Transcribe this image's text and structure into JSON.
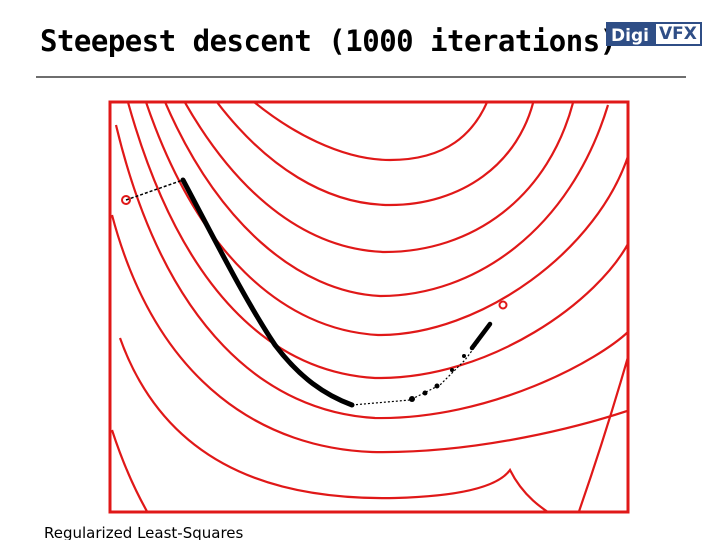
{
  "slide": {
    "title": "Steepest descent (1000 iterations)",
    "footer": "Regularized Least-Squares"
  },
  "logo": {
    "left_text": "Digi",
    "right_text": "VFX",
    "color": "#2f4e86"
  },
  "colors": {
    "contour": "#e01818",
    "path": "#000000",
    "rule": "#6e6e6e"
  }
}
